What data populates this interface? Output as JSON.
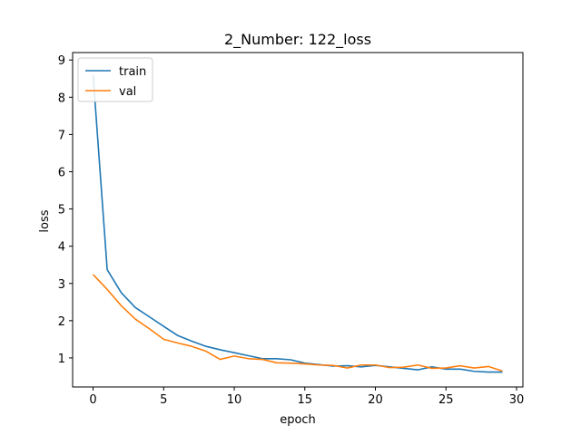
{
  "chart_data": {
    "type": "line",
    "title": "2_Number: 122_loss",
    "xlabel": "epoch",
    "ylabel": "loss",
    "xlim": [
      -1.45,
      30.45
    ],
    "ylim": [
      0.22,
      9.2
    ],
    "xticks": [
      0,
      5,
      10,
      15,
      20,
      25,
      30
    ],
    "yticks": [
      1,
      2,
      3,
      4,
      5,
      6,
      7,
      8,
      9
    ],
    "grid": false,
    "legend_position": "top-left",
    "x": [
      0,
      1,
      2,
      3,
      4,
      5,
      6,
      7,
      8,
      9,
      10,
      11,
      12,
      13,
      14,
      15,
      16,
      17,
      18,
      19,
      20,
      21,
      22,
      23,
      24,
      25,
      26,
      27,
      28,
      29
    ],
    "series": [
      {
        "name": "train",
        "color": "#1f77b4",
        "values": [
          8.6,
          3.37,
          2.75,
          2.35,
          2.1,
          1.85,
          1.6,
          1.45,
          1.31,
          1.22,
          1.14,
          1.06,
          0.98,
          0.98,
          0.95,
          0.86,
          0.82,
          0.78,
          0.79,
          0.76,
          0.8,
          0.76,
          0.72,
          0.68,
          0.76,
          0.7,
          0.7,
          0.64,
          0.62,
          0.62
        ]
      },
      {
        "name": "val",
        "color": "#ff7f0e",
        "values": [
          3.24,
          2.84,
          2.4,
          2.04,
          1.78,
          1.5,
          1.4,
          1.31,
          1.18,
          0.96,
          1.05,
          0.98,
          0.96,
          0.87,
          0.86,
          0.84,
          0.81,
          0.8,
          0.73,
          0.81,
          0.81,
          0.74,
          0.75,
          0.81,
          0.72,
          0.73,
          0.79,
          0.73,
          0.77,
          0.65
        ]
      }
    ]
  }
}
